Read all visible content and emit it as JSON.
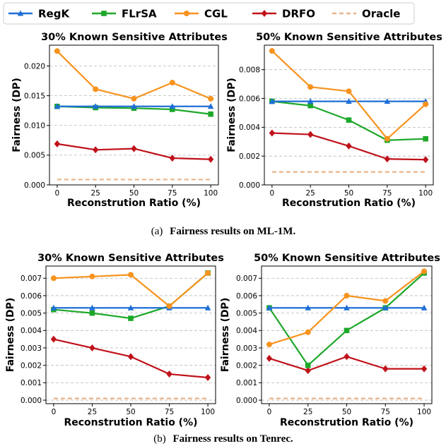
{
  "legend": [
    {
      "name": "RegK",
      "color": "#1f6fd6",
      "marker": "triangle",
      "dashed": false
    },
    {
      "name": "FLrSA",
      "color": "#1da829",
      "marker": "square",
      "dashed": false
    },
    {
      "name": "CGL",
      "color": "#f7931e",
      "marker": "circle",
      "dashed": false
    },
    {
      "name": "DRFO",
      "color": "#c0121b",
      "marker": "diamond",
      "dashed": false
    },
    {
      "name": "Oracle",
      "color": "#e8b48a",
      "marker": "none",
      "dashed": true
    }
  ],
  "captions": [
    {
      "label": "(a)",
      "text": "Fairness results on ML-1M."
    },
    {
      "label": "(b)",
      "text": "Fairness results on Tenrec."
    }
  ],
  "chart_data": [
    {
      "type": "line",
      "title": "30% Known Sensitive Attributes",
      "xlabel": "Reconstrution Ratio (%)",
      "ylabel": "Fairness (DP)",
      "x": [
        0,
        25,
        50,
        75,
        100
      ],
      "xlim": [
        -5,
        105
      ],
      "ylim": [
        0,
        0.0235
      ],
      "yticks": [
        0,
        0.005,
        0.01,
        0.015,
        0.02
      ],
      "ytick_labels": [
        "0.000",
        "0.005",
        "0.010",
        "0.015",
        "0.020"
      ],
      "grid": "y-dashed",
      "series": [
        {
          "name": "RegK",
          "values": [
            0.0132,
            0.0132,
            0.0132,
            0.0132,
            0.0132
          ]
        },
        {
          "name": "FLrSA",
          "values": [
            0.0132,
            0.013,
            0.0129,
            0.0127,
            0.0119
          ]
        },
        {
          "name": "CGL",
          "values": [
            0.0225,
            0.0161,
            0.0145,
            0.0172,
            0.0145
          ]
        },
        {
          "name": "DRFO",
          "values": [
            0.0069,
            0.0059,
            0.0061,
            0.0045,
            0.0043
          ]
        },
        {
          "name": "Oracle",
          "values": [
            0.0009,
            0.0009,
            0.0009,
            0.0009,
            0.0009
          ]
        }
      ]
    },
    {
      "type": "line",
      "title": "50% Known Sensitive Attributes",
      "xlabel": "Reconstrution Ratio (%)",
      "ylabel": "Fairness (DP)",
      "x": [
        0,
        25,
        50,
        75,
        100
      ],
      "xlim": [
        -5,
        105
      ],
      "ylim": [
        0,
        0.0097
      ],
      "yticks": [
        0,
        0.002,
        0.004,
        0.006,
        0.008
      ],
      "ytick_labels": [
        "0.000",
        "0.002",
        "0.004",
        "0.006",
        "0.008"
      ],
      "grid": "y-dashed",
      "series": [
        {
          "name": "RegK",
          "values": [
            0.0058,
            0.0058,
            0.0058,
            0.0058,
            0.0058
          ]
        },
        {
          "name": "FLrSA",
          "values": [
            0.0058,
            0.0055,
            0.0045,
            0.0031,
            0.0032
          ]
        },
        {
          "name": "CGL",
          "values": [
            0.0093,
            0.0068,
            0.0065,
            0.0032,
            0.0056
          ]
        },
        {
          "name": "DRFO",
          "values": [
            0.0036,
            0.0035,
            0.0027,
            0.0018,
            0.00175
          ]
        },
        {
          "name": "Oracle",
          "values": [
            0.0009,
            0.0009,
            0.0009,
            0.0009,
            0.0009
          ]
        }
      ]
    },
    {
      "type": "line",
      "title": "30% Known Sensitive Attributes",
      "xlabel": "Reconstrution Ratio (%)",
      "ylabel": "Fairness (DP)",
      "x": [
        0,
        25,
        50,
        75,
        100
      ],
      "xlim": [
        -5,
        105
      ],
      "ylim": [
        -0.0002,
        0.0077
      ],
      "yticks": [
        0,
        0.001,
        0.002,
        0.003,
        0.004,
        0.005,
        0.006,
        0.007
      ],
      "ytick_labels": [
        "0.000",
        "0.001",
        "0.002",
        "0.003",
        "0.004",
        "0.005",
        "0.006",
        "0.007"
      ],
      "grid": "y-dashed",
      "series": [
        {
          "name": "RegK",
          "values": [
            0.0053,
            0.0053,
            0.0053,
            0.0053,
            0.0053
          ]
        },
        {
          "name": "FLrSA",
          "values": [
            0.0052,
            0.005,
            0.0047,
            0.0054,
            0.0073
          ]
        },
        {
          "name": "CGL",
          "values": [
            0.007,
            0.0071,
            0.0072,
            0.0054,
            0.0073
          ]
        },
        {
          "name": "DRFO",
          "values": [
            0.0035,
            0.003,
            0.0025,
            0.0015,
            0.0013
          ]
        },
        {
          "name": "Oracle",
          "values": [
            0.0001,
            0.0001,
            0.0001,
            0.0001,
            0.0001
          ]
        }
      ]
    },
    {
      "type": "line",
      "title": "50% Known Sensitive Attributes",
      "xlabel": "Reconstrution Ratio (%)",
      "ylabel": "Fairness (DP)",
      "x": [
        0,
        25,
        50,
        75,
        100
      ],
      "xlim": [
        -5,
        105
      ],
      "ylim": [
        -0.0002,
        0.0077
      ],
      "yticks": [
        0,
        0.001,
        0.002,
        0.003,
        0.004,
        0.005,
        0.006,
        0.007
      ],
      "ytick_labels": [
        "0.000",
        "0.001",
        "0.002",
        "0.003",
        "0.004",
        "0.005",
        "0.006",
        "0.007"
      ],
      "grid": "y-dashed",
      "series": [
        {
          "name": "RegK",
          "values": [
            0.0053,
            0.0053,
            0.0053,
            0.0053,
            0.0053
          ]
        },
        {
          "name": "FLrSA",
          "values": [
            0.0053,
            0.002,
            0.004,
            0.0053,
            0.0073
          ]
        },
        {
          "name": "CGL",
          "values": [
            0.0032,
            0.0039,
            0.006,
            0.0057,
            0.0074
          ]
        },
        {
          "name": "DRFO",
          "values": [
            0.0024,
            0.0017,
            0.0025,
            0.0018,
            0.0018
          ]
        },
        {
          "name": "Oracle",
          "values": [
            0.0001,
            0.0001,
            0.0001,
            0.0001,
            0.0001
          ]
        }
      ]
    }
  ]
}
